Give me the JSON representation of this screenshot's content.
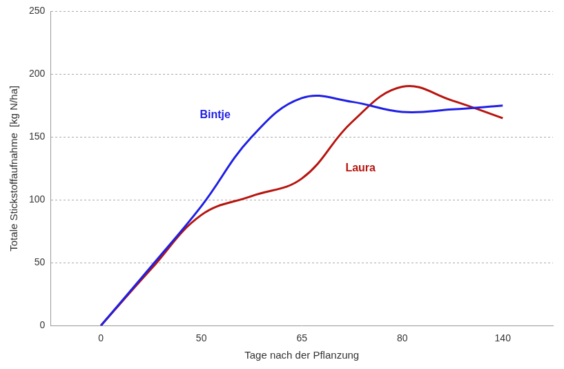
{
  "chart_data": {
    "type": "line",
    "x_label": "Tage nach der Pflanzung",
    "y_label": "Totale Stickstoffaufnahme  [kg N/ha]",
    "categories": [
      null,
      0,
      null,
      50,
      null,
      65,
      null,
      80,
      null,
      140,
      null
    ],
    "series": [
      {
        "name": "Bintje",
        "color": "#1f1fe6",
        "values": [
          null,
          0,
          47,
          95,
          150,
          181,
          178,
          170,
          172,
          175,
          null
        ]
      },
      {
        "name": "Laura",
        "color": "#b8140e",
        "values": [
          null,
          0,
          45,
          88,
          103,
          117,
          162,
          190,
          179,
          165,
          null
        ]
      }
    ],
    "ylim": [
      0,
      250
    ],
    "yticks": [
      0,
      50,
      100,
      150,
      200,
      250
    ],
    "grid": true
  }
}
